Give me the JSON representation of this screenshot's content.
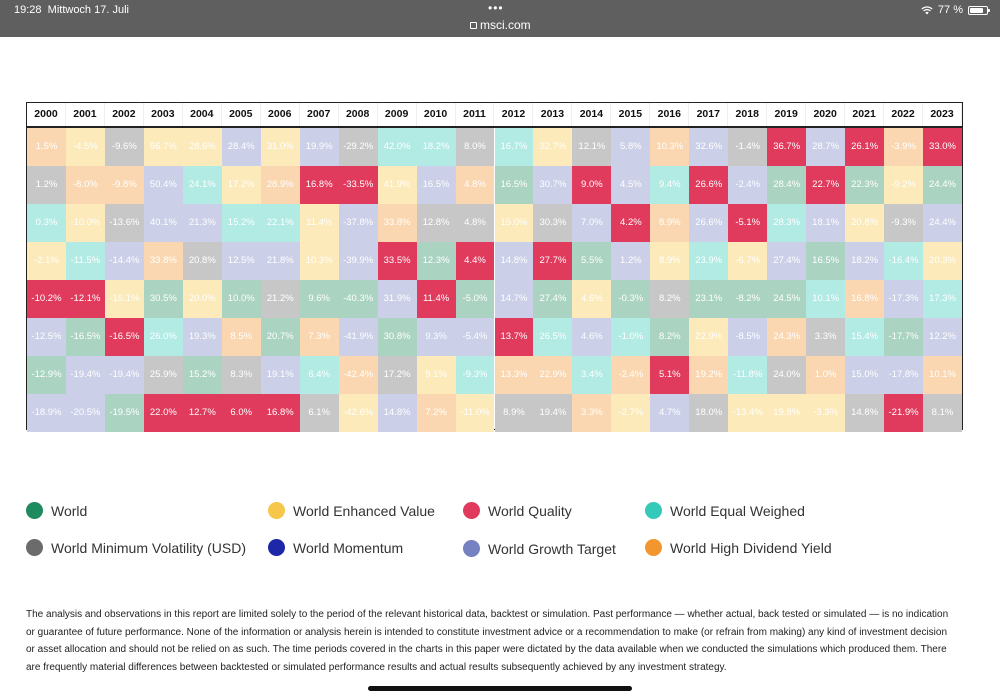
{
  "status_bar": {
    "time": "19:28",
    "date": "Mittwoch 17. Juli",
    "dots": "•••",
    "url": "msci.com",
    "battery": "77 %"
  },
  "chart_data": {
    "type": "table",
    "title": "",
    "columns": [
      "2000",
      "2001",
      "2002",
      "2003",
      "2004",
      "2005",
      "2006",
      "2007",
      "2008",
      "2009",
      "2010",
      "2011",
      "2012",
      "2013",
      "2014",
      "2015",
      "2016",
      "2017",
      "2018",
      "2019",
      "2020",
      "2021",
      "2022",
      "2023"
    ],
    "series_colors": {
      "World": "#1e8a5f",
      "World Enhanced Value": "#f6c74a",
      "World Quality": "#e03a5c",
      "World Equal Weighed": "#35c9b9",
      "World Minimum Volatility (USD)": "#6b6b6b",
      "World Momentum": "#1d27a8",
      "World Growth Target": "#7581c0",
      "World High Dividend Yield": "#f2962f"
    },
    "rows": [
      [
        {
          "v": "1.5%",
          "s": "World High Dividend Yield"
        },
        {
          "v": "-4.5%",
          "s": "World Enhanced Value"
        },
        {
          "v": "-9.6%",
          "s": "World Minimum Volatility (USD)"
        },
        {
          "v": "56.7%",
          "s": "World Enhanced Value"
        },
        {
          "v": "28.6%",
          "s": "World Enhanced Value"
        },
        {
          "v": "28.4%",
          "s": "World Growth Target"
        },
        {
          "v": "31.0%",
          "s": "World Enhanced Value"
        },
        {
          "v": "19.9%",
          "s": "World Growth Target"
        },
        {
          "v": "-29.2%",
          "s": "World Minimum Volatility (USD)"
        },
        {
          "v": "42.0%",
          "s": "World Equal Weighed"
        },
        {
          "v": "18.2%",
          "s": "World Equal Weighed"
        },
        {
          "v": "8.0%",
          "s": "World Minimum Volatility (USD)"
        },
        {
          "v": "16.7%",
          "s": "World Equal Weighed"
        },
        {
          "v": "32.7%",
          "s": "World Enhanced Value"
        },
        {
          "v": "12.1%",
          "s": "World Minimum Volatility (USD)"
        },
        {
          "v": "5.8%",
          "s": "World Growth Target"
        },
        {
          "v": "10.3%",
          "s": "World High Dividend Yield"
        },
        {
          "v": "32.6%",
          "s": "World Growth Target"
        },
        {
          "v": "-1.4%",
          "s": "World Minimum Volatility (USD)"
        },
        {
          "v": "36.7%",
          "s": "World Quality"
        },
        {
          "v": "28.7%",
          "s": "World Growth Target"
        },
        {
          "v": "26.1%",
          "s": "World Quality"
        },
        {
          "v": "-3.9%",
          "s": "World High Dividend Yield"
        },
        {
          "v": "33.0%",
          "s": "World Quality"
        }
      ],
      [
        {
          "v": "1.2%",
          "s": "World Minimum Volatility (USD)"
        },
        {
          "v": "-8.0%",
          "s": "World High Dividend Yield"
        },
        {
          "v": "-9.8%",
          "s": "World High Dividend Yield"
        },
        {
          "v": "50.4%",
          "s": "World Growth Target"
        },
        {
          "v": "24.1%",
          "s": "World Equal Weighed"
        },
        {
          "v": "17.2%",
          "s": "World Enhanced Value"
        },
        {
          "v": "28.9%",
          "s": "World High Dividend Yield"
        },
        {
          "v": "16.8%",
          "s": "World Quality"
        },
        {
          "v": "-33.5%",
          "s": "World Quality"
        },
        {
          "v": "41.9%",
          "s": "World Enhanced Value"
        },
        {
          "v": "16.5%",
          "s": "World Growth Target"
        },
        {
          "v": "4.8%",
          "s": "World High Dividend Yield"
        },
        {
          "v": "16.5%",
          "s": "World World"
        },
        {
          "v": "30.7%",
          "s": "World Growth Target"
        },
        {
          "v": "9.0%",
          "s": "World Quality"
        },
        {
          "v": "4.5%",
          "s": "World Growth Target"
        },
        {
          "v": "9.4%",
          "s": "World Equal Weighed"
        },
        {
          "v": "26.6%",
          "s": "World Quality"
        },
        {
          "v": "-2.4%",
          "s": "World Growth Target"
        },
        {
          "v": "28.4%",
          "s": "World World"
        },
        {
          "v": "22.7%",
          "s": "World Quality"
        },
        {
          "v": "22.3%",
          "s": "World World"
        },
        {
          "v": "-9.2%",
          "s": "World Enhanced Value"
        },
        {
          "v": "24.4%",
          "s": "World World"
        }
      ],
      [
        {
          "v": "0.3%",
          "s": "World Equal Weighed"
        },
        {
          "v": "-10.0%",
          "s": "World Enhanced Value"
        },
        {
          "v": "-13.6%",
          "s": "World Minimum Volatility (USD)"
        },
        {
          "v": "40.1%",
          "s": "World Growth Target"
        },
        {
          "v": "21.3%",
          "s": "World Growth Target"
        },
        {
          "v": "15.2%",
          "s": "World Equal Weighed"
        },
        {
          "v": "22.1%",
          "s": "World Equal Weighed"
        },
        {
          "v": "11.4%",
          "s": "World Enhanced Value"
        },
        {
          "v": "-37.8%",
          "s": "World Growth Target"
        },
        {
          "v": "33.8%",
          "s": "World High Dividend Yield"
        },
        {
          "v": "12.8%",
          "s": "World Minimum Volatility (USD)"
        },
        {
          "v": "4.8%",
          "s": "World Minimum Volatility (USD)"
        },
        {
          "v": "15.0%",
          "s": "World Enhanced Value"
        },
        {
          "v": "30.3%",
          "s": "World Minimum Volatility (USD)"
        },
        {
          "v": "7.0%",
          "s": "World Growth Target"
        },
        {
          "v": "4.2%",
          "s": "World Quality"
        },
        {
          "v": "8.9%",
          "s": "World High Dividend Yield"
        },
        {
          "v": "26.6%",
          "s": "World Growth Target"
        },
        {
          "v": "-5.1%",
          "s": "World Quality"
        },
        {
          "v": "28.3%",
          "s": "World Equal Weighed"
        },
        {
          "v": "18.1%",
          "s": "World Growth Target"
        },
        {
          "v": "20.8%",
          "s": "World Enhanced Value"
        },
        {
          "v": "-9.3%",
          "s": "World Minimum Volatility (USD)"
        },
        {
          "v": "24.4%",
          "s": "World Growth Target"
        }
      ],
      [
        {
          "v": "-2.1%",
          "s": "World Enhanced Value"
        },
        {
          "v": "-11.5%",
          "s": "World Equal Weighed"
        },
        {
          "v": "-14.4%",
          "s": "World Growth Target"
        },
        {
          "v": "33.8%",
          "s": "World High Dividend Yield"
        },
        {
          "v": "20.8%",
          "s": "World Minimum Volatility (USD)"
        },
        {
          "v": "12.5%",
          "s": "World Growth Target"
        },
        {
          "v": "21.8%",
          "s": "World Growth Target"
        },
        {
          "v": "10.3%",
          "s": "World Enhanced Value"
        },
        {
          "v": "-39.9%",
          "s": "World Growth Target"
        },
        {
          "v": "33.5%",
          "s": "World Quality"
        },
        {
          "v": "12.3%",
          "s": "World World"
        },
        {
          "v": "4.4%",
          "s": "World Quality"
        },
        {
          "v": "14.8%",
          "s": "World Growth Target"
        },
        {
          "v": "27.7%",
          "s": "World Quality"
        },
        {
          "v": "5.5%",
          "s": "World World"
        },
        {
          "v": "1.2%",
          "s": "World Growth Target"
        },
        {
          "v": "8.9%",
          "s": "World Enhanced Value"
        },
        {
          "v": "23.9%",
          "s": "World Equal Weighed"
        },
        {
          "v": "-6.7%",
          "s": "World Enhanced Value"
        },
        {
          "v": "27.4%",
          "s": "World Growth Target"
        },
        {
          "v": "16.5%",
          "s": "World World"
        },
        {
          "v": "18.2%",
          "s": "World Growth Target"
        },
        {
          "v": "-16.4%",
          "s": "World Equal Weighed"
        },
        {
          "v": "20.3%",
          "s": "World Enhanced Value"
        }
      ],
      [
        {
          "v": "-10.2%",
          "s": "World Quality"
        },
        {
          "v": "-12.1%",
          "s": "World Quality"
        },
        {
          "v": "-15.1%",
          "s": "World Enhanced Value"
        },
        {
          "v": "30.5%",
          "s": "World World"
        },
        {
          "v": "20.0%",
          "s": "World Enhanced Value"
        },
        {
          "v": "10.0%",
          "s": "World World"
        },
        {
          "v": "21.2%",
          "s": "World Minimum Volatility (USD)"
        },
        {
          "v": "9.6%",
          "s": "World World"
        },
        {
          "v": "-40.3%",
          "s": "World World"
        },
        {
          "v": "31.9%",
          "s": "World Growth Target"
        },
        {
          "v": "11.4%",
          "s": "World Quality"
        },
        {
          "v": "-5.0%",
          "s": "World World"
        },
        {
          "v": "14.7%",
          "s": "World Growth Target"
        },
        {
          "v": "27.4%",
          "s": "World World"
        },
        {
          "v": "4.6%",
          "s": "World Enhanced Value"
        },
        {
          "v": "-0.3%",
          "s": "World World"
        },
        {
          "v": "8.2%",
          "s": "World Minimum Volatility (USD)"
        },
        {
          "v": "23.1%",
          "s": "World World"
        },
        {
          "v": "-8.2%",
          "s": "World World"
        },
        {
          "v": "24.5%",
          "s": "World World"
        },
        {
          "v": "10.1%",
          "s": "World Equal Weighed"
        },
        {
          "v": "16.8%",
          "s": "World High Dividend Yield"
        },
        {
          "v": "-17.3%",
          "s": "World Growth Target"
        },
        {
          "v": "17.3%",
          "s": "World Equal Weighed"
        }
      ],
      [
        {
          "v": "-12.5%",
          "s": "World Growth Target"
        },
        {
          "v": "-16.5%",
          "s": "World World"
        },
        {
          "v": "-16.5%",
          "s": "World Quality"
        },
        {
          "v": "26.0%",
          "s": "World Equal Weighed"
        },
        {
          "v": "19.3%",
          "s": "World Growth Target"
        },
        {
          "v": "8.5%",
          "s": "World High Dividend Yield"
        },
        {
          "v": "20.7%",
          "s": "World World"
        },
        {
          "v": "7.3%",
          "s": "World High Dividend Yield"
        },
        {
          "v": "-41.9%",
          "s": "World Growth Target"
        },
        {
          "v": "30.8%",
          "s": "World World"
        },
        {
          "v": "9.3%",
          "s": "World Growth Target"
        },
        {
          "v": "-5.4%",
          "s": "World Growth Target"
        },
        {
          "v": "13.7%",
          "s": "World Quality"
        },
        {
          "v": "26.5%",
          "s": "World Equal Weighed"
        },
        {
          "v": "4.6%",
          "s": "World Growth Target"
        },
        {
          "v": "-1.0%",
          "s": "World Equal Weighed"
        },
        {
          "v": "8.2%",
          "s": "World World"
        },
        {
          "v": "22.9%",
          "s": "World Enhanced Value"
        },
        {
          "v": "-8.5%",
          "s": "World Growth Target"
        },
        {
          "v": "24.3%",
          "s": "World High Dividend Yield"
        },
        {
          "v": "3.3%",
          "s": "World Minimum Volatility (USD)"
        },
        {
          "v": "15.4%",
          "s": "World Equal Weighed"
        },
        {
          "v": "-17.7%",
          "s": "World World"
        },
        {
          "v": "12.2%",
          "s": "World Growth Target"
        }
      ],
      [
        {
          "v": "-12.9%",
          "s": "World World"
        },
        {
          "v": "-19.4%",
          "s": "World Growth Target"
        },
        {
          "v": "-19.4%",
          "s": "World Growth Target"
        },
        {
          "v": "25.9%",
          "s": "World Minimum Volatility (USD)"
        },
        {
          "v": "15.2%",
          "s": "World World"
        },
        {
          "v": "8.3%",
          "s": "World Minimum Volatility (USD)"
        },
        {
          "v": "19.1%",
          "s": "World Growth Target"
        },
        {
          "v": "6.4%",
          "s": "World Equal Weighed"
        },
        {
          "v": "-42.4%",
          "s": "World High Dividend Yield"
        },
        {
          "v": "17.2%",
          "s": "World Minimum Volatility (USD)"
        },
        {
          "v": "9.1%",
          "s": "World Enhanced Value"
        },
        {
          "v": "-9.3%",
          "s": "World Equal Weighed"
        },
        {
          "v": "13.3%",
          "s": "World High Dividend Yield"
        },
        {
          "v": "22.9%",
          "s": "World High Dividend Yield"
        },
        {
          "v": "3.4%",
          "s": "World Equal Weighed"
        },
        {
          "v": "-2.4%",
          "s": "World High Dividend Yield"
        },
        {
          "v": "5.1%",
          "s": "World Quality"
        },
        {
          "v": "19.2%",
          "s": "World High Dividend Yield"
        },
        {
          "v": "-11.8%",
          "s": "World Equal Weighed"
        },
        {
          "v": "24.0%",
          "s": "World Minimum Volatility (USD)"
        },
        {
          "v": "1.0%",
          "s": "World High Dividend Yield"
        },
        {
          "v": "15.0%",
          "s": "World Growth Target"
        },
        {
          "v": "-17.8%",
          "s": "World Growth Target"
        },
        {
          "v": "10.1%",
          "s": "World High Dividend Yield"
        }
      ],
      [
        {
          "v": "-18.9%",
          "s": "World Growth Target"
        },
        {
          "v": "-20.5%",
          "s": "World Growth Target"
        },
        {
          "v": "-19.5%",
          "s": "World World"
        },
        {
          "v": "22.0%",
          "s": "World Quality"
        },
        {
          "v": "12.7%",
          "s": "World Quality"
        },
        {
          "v": "6.0%",
          "s": "World Quality"
        },
        {
          "v": "16.8%",
          "s": "World Quality"
        },
        {
          "v": "6.1%",
          "s": "World Minimum Volatility (USD)"
        },
        {
          "v": "-42.6%",
          "s": "World Enhanced Value"
        },
        {
          "v": "14.8%",
          "s": "World Growth Target"
        },
        {
          "v": "7.2%",
          "s": "World High Dividend Yield"
        },
        {
          "v": "-11.0%",
          "s": "World Enhanced Value"
        },
        {
          "v": "8.9%",
          "s": "World Minimum Volatility (USD)"
        },
        {
          "v": "19.4%",
          "s": "World Minimum Volatility (USD)"
        },
        {
          "v": "3.3%",
          "s": "World High Dividend Yield"
        },
        {
          "v": "-2.7%",
          "s": "World Enhanced Value"
        },
        {
          "v": "4.7%",
          "s": "World Growth Target"
        },
        {
          "v": "18.0%",
          "s": "World Minimum Volatility (USD)"
        },
        {
          "v": "-13.4%",
          "s": "World Enhanced Value"
        },
        {
          "v": "19.8%",
          "s": "World Enhanced Value"
        },
        {
          "v": "-3.3%",
          "s": "World Enhanced Value"
        },
        {
          "v": "14.8%",
          "s": "World Minimum Volatility (USD)"
        },
        {
          "v": "-21.9%",
          "s": "World Quality"
        },
        {
          "v": "8.1%",
          "s": "World Minimum Volatility (USD)"
        }
      ]
    ]
  },
  "legend": {
    "items": [
      {
        "label": "World",
        "color": "#1e8a5f"
      },
      {
        "label": "World Enhanced Value",
        "color": "#f6c74a"
      },
      {
        "label": "World Quality",
        "color": "#e03a5c"
      },
      {
        "label": "World Equal Weighed",
        "color": "#35c9b9"
      },
      {
        "label": "World Minimum Volatility (USD)",
        "color": "#6b6b6b"
      },
      {
        "label": "World Momentum",
        "color": "#1d27a8"
      },
      {
        "label": "World Growth Target",
        "color": "#7581c0"
      },
      {
        "label": "World High Dividend Yield",
        "color": "#f2962f"
      }
    ]
  },
  "disclaimer": "The analysis and observations in this report are limited solely to the period of the relevant historical data, backtest or simulation. Past performance — whether actual, back tested or simulated — is no indication or guarantee of future performance. None of the information or analysis herein is intended to constitute investment advice or a recommendation to make (or refrain from making) any kind of investment decision or asset allocation and should not be relied on as such. The time periods covered in the charts in this paper were dictated by the data available when we conducted the simulations which produced them. There are frequently material differences between backtested or simulated performance results and actual results subsequently achieved by any investment strategy."
}
